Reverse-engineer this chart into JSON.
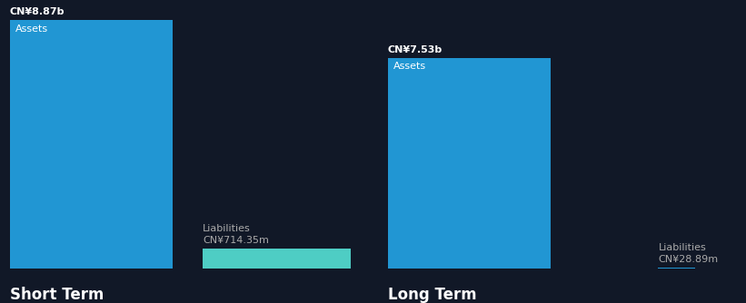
{
  "bg_color": "#111827",
  "short_term": {
    "assets_value": 8.87,
    "assets_label": "Assets",
    "assets_value_text": "CN¥8.87b",
    "assets_color": "#2196d3",
    "liabilities_value": 0.71435,
    "liabilities_label": "Liabilities",
    "liabilities_value_text": "CN¥714.35m",
    "liabilities_color": "#4ecdc4",
    "section_label": "Short Term"
  },
  "long_term": {
    "assets_value": 7.53,
    "assets_label": "Assets",
    "assets_value_text": "CN¥7.53b",
    "assets_color": "#2196d3",
    "liabilities_value": 0.02889,
    "liabilities_label": "Liabilities",
    "liabilities_value_text": "CN¥28.89m",
    "liabilities_color": "#2196d3",
    "section_label": "Long Term"
  },
  "text_color": "#ffffff",
  "label_color": "#aaaaaa",
  "font_size_label": 8,
  "font_size_value": 8,
  "font_size_section": 12,
  "font_size_inside": 8,
  "y_max": 9.5
}
